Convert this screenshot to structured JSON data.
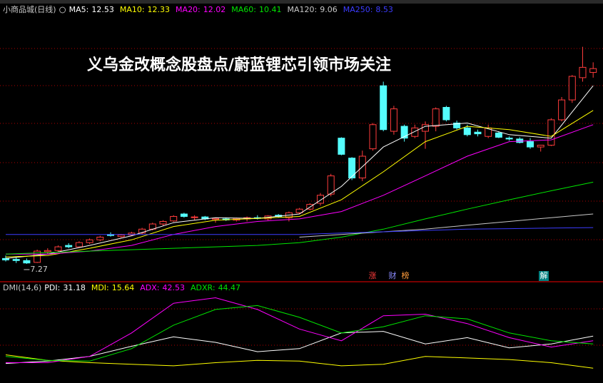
{
  "chart_data": [
    {
      "type": "candlestick",
      "title": "小商品城(日线)",
      "headline": "义乌金改概念股盘点/蔚蓝锂芯引领市场关注",
      "up_color": "#ff3c3c",
      "down_color": "#54fcfc",
      "log_scale": true,
      "ylim": [
        6.71,
        22.2
      ],
      "open": [
        7.45,
        7.42,
        7.38,
        7.32,
        7.68,
        7.72,
        7.9,
        7.85,
        8.0,
        8.1,
        8.3,
        8.22,
        8.28,
        8.35,
        8.5,
        8.7,
        8.82,
        9.1,
        8.95,
        8.98,
        8.88,
        8.9,
        8.85,
        8.9,
        8.95,
        8.9,
        9.05,
        8.95,
        9.15,
        9.3,
        9.55,
        9.95,
        12.8,
        11.7,
        10.7,
        12.2,
        16.2,
        13.2,
        13.5,
        12.9,
        13.2,
        13.5,
        14.7,
        13.7,
        13.4,
        13.15,
        12.9,
        13.1,
        12.8,
        12.75,
        12.6,
        12.3,
        12.4,
        13.9,
        15.2,
        16.8,
        17.2
      ],
      "high": [
        7.55,
        7.5,
        7.45,
        7.75,
        7.8,
        7.9,
        7.98,
        8.05,
        8.15,
        8.25,
        8.38,
        8.32,
        8.4,
        8.55,
        8.75,
        8.85,
        9.05,
        9.15,
        9.05,
        9.02,
        8.95,
        8.96,
        8.95,
        9.0,
        9.05,
        9.05,
        9.1,
        9.2,
        9.35,
        9.55,
        10.0,
        10.9,
        12.85,
        11.75,
        12.1,
        13.7,
        16.5,
        14.8,
        13.6,
        13.6,
        13.8,
        14.7,
        14.8,
        13.85,
        13.6,
        13.3,
        13.6,
        13.2,
        12.9,
        12.85,
        12.8,
        12.4,
        14.0,
        15.4,
        17.0,
        19.3,
        18.0
      ],
      "low": [
        7.35,
        7.3,
        7.27,
        7.3,
        7.6,
        7.68,
        7.8,
        7.82,
        7.95,
        8.05,
        8.22,
        8.18,
        8.24,
        8.3,
        8.45,
        8.62,
        8.78,
        8.95,
        8.85,
        8.85,
        8.75,
        8.82,
        8.8,
        8.8,
        8.88,
        8.85,
        8.95,
        8.8,
        9.1,
        9.25,
        9.45,
        9.85,
        11.85,
        10.6,
        10.55,
        12.1,
        13.2,
        13.0,
        12.6,
        12.8,
        12.2,
        13.2,
        13.8,
        13.3,
        12.9,
        12.9,
        12.8,
        12.8,
        12.65,
        12.5,
        12.2,
        12.05,
        12.35,
        13.8,
        15.0,
        16.5,
        16.8
      ],
      "close": [
        7.4,
        7.38,
        7.3,
        7.7,
        7.72,
        7.85,
        7.85,
        8.0,
        8.1,
        8.2,
        8.26,
        8.28,
        8.35,
        8.5,
        8.7,
        8.8,
        9.0,
        9.0,
        8.98,
        8.9,
        8.92,
        8.86,
        8.92,
        8.95,
        8.92,
        9.02,
        9.0,
        9.15,
        9.3,
        9.5,
        9.9,
        10.8,
        11.9,
        10.7,
        11.8,
        13.6,
        13.3,
        14.6,
        12.8,
        13.4,
        13.6,
        14.6,
        13.9,
        13.4,
        13.0,
        13.05,
        13.4,
        12.85,
        12.75,
        12.55,
        12.3,
        12.4,
        13.9,
        15.2,
        16.9,
        17.6,
        17.5
      ],
      "series": [
        {
          "name": "MA5:",
          "current": 12.53,
          "color": "#ffffff",
          "x": [
            0,
            4,
            8,
            12,
            16,
            20,
            24,
            28,
            32,
            36,
            40,
            44,
            48,
            52,
            56
          ],
          "values": [
            7.45,
            7.6,
            7.9,
            8.25,
            8.75,
            8.95,
            8.92,
            9.1,
            10.3,
            12.3,
            13.5,
            13.7,
            13.0,
            12.8,
            16.2
          ]
        },
        {
          "name": "MA10:",
          "current": 12.33,
          "color": "#ffff00",
          "x": [
            0,
            4,
            8,
            12,
            16,
            20,
            24,
            28,
            32,
            36,
            40,
            44,
            48,
            52,
            56
          ],
          "values": [
            7.5,
            7.55,
            7.8,
            8.1,
            8.6,
            8.85,
            8.92,
            9.0,
            9.7,
            11.0,
            12.6,
            13.5,
            13.3,
            12.9,
            14.5
          ]
        },
        {
          "name": "MA20:",
          "current": 12.02,
          "color": "#ff00ff",
          "x": [
            0,
            4,
            8,
            12,
            16,
            20,
            24,
            28,
            32,
            36,
            40,
            44,
            48,
            52,
            56
          ],
          "values": [
            7.6,
            7.6,
            7.7,
            7.9,
            8.3,
            8.6,
            8.8,
            8.9,
            9.2,
            9.9,
            10.8,
            11.8,
            12.6,
            12.7,
            13.6
          ]
        },
        {
          "name": "MA60:",
          "current": 10.41,
          "color": "#00e600",
          "x": [
            0,
            4,
            8,
            12,
            16,
            20,
            24,
            28,
            32,
            36,
            40,
            44,
            48,
            52,
            56
          ],
          "values": [
            7.6,
            7.65,
            7.7,
            7.75,
            7.8,
            7.85,
            7.9,
            8.0,
            8.2,
            8.5,
            8.9,
            9.3,
            9.7,
            10.1,
            10.5
          ]
        },
        {
          "name": "MA120:",
          "current": 9.06,
          "color": "#c8c8c8",
          "x": [
            0,
            4,
            8,
            12,
            16,
            20,
            24,
            28,
            32,
            36,
            40,
            44,
            48,
            52,
            56
          ],
          "values": [
            null,
            null,
            null,
            null,
            null,
            null,
            null,
            8.2,
            8.3,
            8.4,
            8.5,
            8.65,
            8.8,
            8.95,
            9.1
          ]
        },
        {
          "name": "MA250:",
          "current": 8.53,
          "color": "#3c3cff",
          "x": [
            0,
            4,
            8,
            12,
            16,
            20,
            24,
            28,
            32,
            36,
            40,
            44,
            48,
            52,
            56
          ],
          "values": [
            8.3,
            8.3,
            8.3,
            8.3,
            8.3,
            8.3,
            8.3,
            8.3,
            8.35,
            8.4,
            8.45,
            8.5,
            8.52,
            8.54,
            8.56
          ]
        }
      ],
      "annotations": [
        {
          "text": "涨",
          "color": "#ff3c3c"
        },
        {
          "text": "财",
          "color": "#8c8cff"
        },
        {
          "text": "榜",
          "color": "#ff9c3c"
        },
        {
          "text": "解",
          "color": "#ffffff",
          "background": "#008080"
        }
      ]
    },
    {
      "type": "line",
      "title": "DMI(14,6)",
      "ylim": [
        -14,
        100
      ],
      "series": [
        {
          "name": "PDI:",
          "current": 31.18,
          "color": "#ffffff",
          "x": [
            0,
            4,
            8,
            12,
            16,
            20,
            24,
            28,
            32,
            36,
            40,
            44,
            48,
            52,
            56
          ],
          "values": [
            11,
            14,
            20,
            33,
            45,
            38,
            26,
            30,
            50,
            52,
            36,
            44,
            31,
            36,
            46
          ]
        },
        {
          "name": "MDI:",
          "current": 15.64,
          "color": "#ffff00",
          "x": [
            0,
            4,
            8,
            12,
            16,
            20,
            24,
            28,
            32,
            36,
            40,
            44,
            48,
            52,
            56
          ],
          "values": [
            22,
            15,
            12,
            10,
            8,
            12,
            15,
            14,
            8,
            10,
            20,
            18,
            16,
            12,
            5
          ]
        },
        {
          "name": "ADX:",
          "current": 42.53,
          "color": "#ff00ff",
          "x": [
            0,
            4,
            8,
            12,
            16,
            20,
            24,
            28,
            32,
            36,
            40,
            44,
            48,
            52,
            56
          ],
          "values": [
            12,
            12,
            20,
            50,
            88,
            95,
            80,
            55,
            40,
            72,
            74,
            62,
            44,
            32,
            40
          ]
        },
        {
          "name": "ADXR:",
          "current": 44.47,
          "color": "#00e600",
          "x": [
            0,
            4,
            8,
            12,
            16,
            20,
            24,
            28,
            32,
            36,
            40,
            44,
            48,
            52,
            56
          ],
          "values": [
            20,
            15,
            14,
            30,
            60,
            80,
            85,
            70,
            50,
            58,
            72,
            68,
            50,
            40,
            36
          ]
        }
      ]
    }
  ]
}
